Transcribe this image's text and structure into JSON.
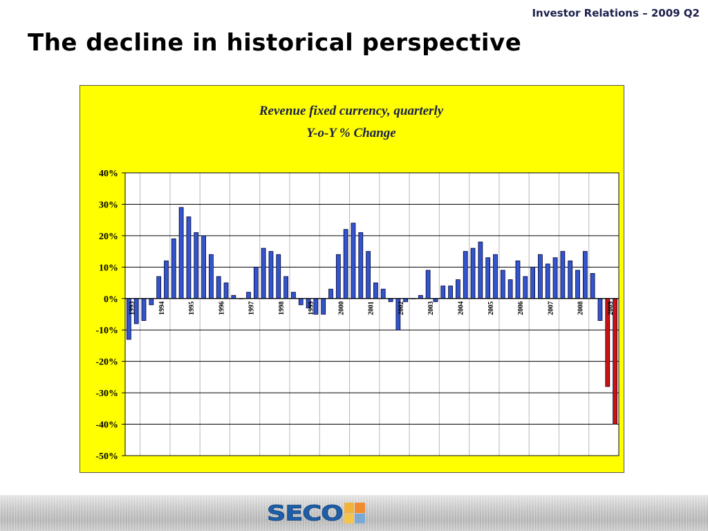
{
  "header": {
    "right_label": "Investor Relations – 2009 Q2"
  },
  "slide": {
    "title": "The decline in historical perspective"
  },
  "logo": {
    "text": "SECO"
  },
  "colors": {
    "chart_bg": "#ffff00",
    "bar_normal": "#3355cc",
    "bar_highlight": "#cc1111",
    "title_text": "#1b1f4a"
  },
  "chart_data": {
    "type": "bar",
    "title": "Revenue fixed currency, quarterly",
    "subtitle": "Y-o-Y % Change",
    "xlabel": "",
    "ylabel": "",
    "ylim": [
      -50,
      40
    ],
    "yticks": [
      "40%",
      "30%",
      "20%",
      "10%",
      "0%",
      "-10%",
      "-20%",
      "-30%",
      "-40%",
      "-50%"
    ],
    "grid": true,
    "year_labels": [
      "1993",
      "1994",
      "1995",
      "1996",
      "1997",
      "1998",
      "1999",
      "2000",
      "2001",
      "2002",
      "2003",
      "2004",
      "2005",
      "2006",
      "2007",
      "2008",
      "2009"
    ],
    "series": [
      {
        "values": [
          -13,
          -8,
          -7,
          -2,
          7,
          12,
          19,
          29,
          26,
          21,
          20,
          14,
          7,
          5,
          1,
          0,
          2,
          10,
          16,
          15,
          14,
          7,
          2,
          -2,
          -3,
          -5,
          -5,
          3,
          14,
          22,
          24,
          21,
          15,
          5,
          3,
          -1,
          -10,
          -1,
          0,
          1,
          9,
          -1,
          4,
          4,
          6,
          15,
          16,
          18,
          13,
          14,
          9,
          6,
          12,
          7,
          10,
          14,
          11,
          13,
          15,
          12,
          9,
          15,
          8,
          -7,
          -28,
          -40
        ]
      }
    ],
    "highlight_last": 2
  }
}
